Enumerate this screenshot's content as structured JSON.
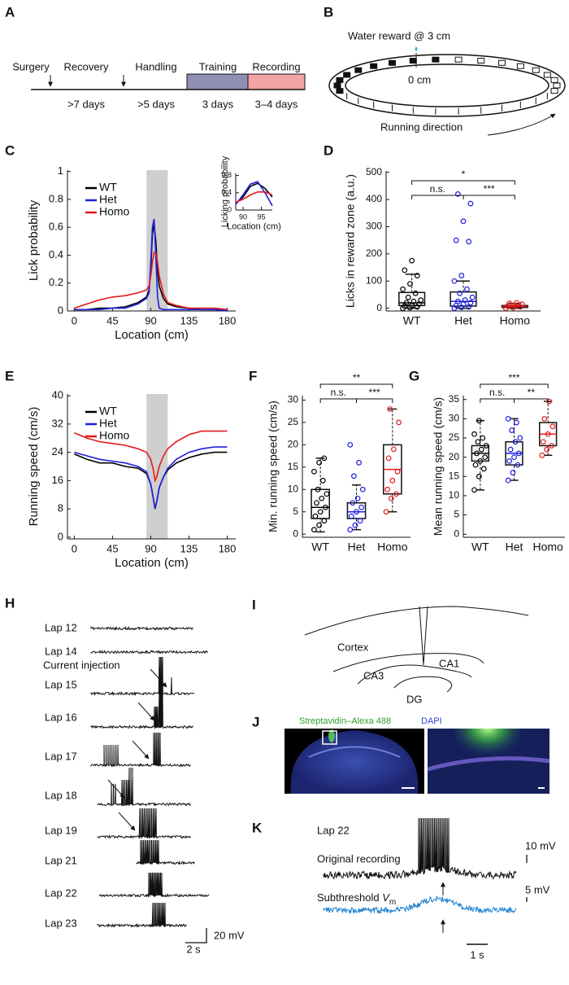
{
  "panels": [
    "A",
    "B",
    "C",
    "D",
    "E",
    "F",
    "G",
    "H",
    "I",
    "J",
    "K"
  ],
  "timeline": {
    "stages": [
      "Surgery",
      "Recovery",
      "Handling",
      "Training",
      "Recording"
    ],
    "durations": [
      ">7 days",
      ">5 days",
      "3 days",
      "3–4 days"
    ]
  },
  "track": {
    "reward": "Water reward @ 3 cm",
    "zero": "0 cm",
    "direction": "Running direction"
  },
  "chart_data": [
    {
      "type": "line",
      "ylabel": "Lick probability",
      "xlabel": "Location (cm)",
      "x": [
        0,
        15,
        30,
        45,
        60,
        75,
        80,
        85,
        88,
        90,
        92,
        94,
        96,
        98,
        100,
        105,
        110,
        120,
        135,
        150,
        165,
        180
      ],
      "series": [
        {
          "name": "WT",
          "color": "#000000",
          "values": [
            0.01,
            0.01,
            0.02,
            0.02,
            0.03,
            0.06,
            0.08,
            0.1,
            0.15,
            0.3,
            0.55,
            0.62,
            0.5,
            0.3,
            0.18,
            0.09,
            0.05,
            0.03,
            0.02,
            0.01,
            0.01,
            0.01
          ]
        },
        {
          "name": "Het",
          "color": "#1f1fe0",
          "values": [
            0.01,
            0.01,
            0.01,
            0.02,
            0.02,
            0.05,
            0.07,
            0.09,
            0.13,
            0.35,
            0.6,
            0.66,
            0.4,
            0.1,
            0.02,
            0.01,
            0.01,
            0.01,
            0.01,
            0.01,
            0.01,
            0
          ]
        },
        {
          "name": "Homo",
          "color": "#e41a1c",
          "values": [
            0.02,
            0.05,
            0.08,
            0.1,
            0.11,
            0.13,
            0.14,
            0.15,
            0.18,
            0.25,
            0.35,
            0.42,
            0.42,
            0.35,
            0.25,
            0.12,
            0.06,
            0.04,
            0.02,
            0.02,
            0.02,
            0.01
          ]
        }
      ],
      "xlim": [
        -8,
        190
      ],
      "xticks": [
        0,
        45,
        90,
        135,
        180
      ],
      "ylim": [
        0,
        1.01
      ],
      "yticks": [
        0,
        0.2,
        0.4,
        0.6,
        0.8,
        1
      ],
      "reward_zone": [
        85,
        110
      ],
      "legend": "upper left"
    },
    {
      "type": "line",
      "ylabel": "Licking probability",
      "xlabel": "Location (cm)",
      "x": [
        88,
        90,
        92,
        94,
        96,
        98
      ],
      "series": [
        {
          "color": "#000000",
          "values": [
            0.15,
            0.3,
            0.55,
            0.62,
            0.5,
            0.3
          ]
        },
        {
          "color": "#1f1fe0",
          "values": [
            0.13,
            0.35,
            0.6,
            0.66,
            0.4,
            0.1
          ]
        },
        {
          "color": "#e41a1c",
          "values": [
            0.18,
            0.25,
            0.35,
            0.42,
            0.42,
            0.35
          ]
        }
      ],
      "xlim": [
        88,
        98
      ],
      "xticks": [
        90,
        95
      ],
      "ylim": [
        0,
        0.85
      ],
      "yticks": [
        0,
        0.4,
        0.8
      ]
    },
    {
      "type": "box",
      "ylabel": "Licks in reward zone (a.u.)",
      "categories": [
        "WT",
        "Het",
        "Homo"
      ],
      "colors": [
        "#000000",
        "#1f1fe0",
        "#e41a1c"
      ],
      "boxes": [
        {
          "whislo": 0,
          "q1": 10,
          "med": 20,
          "q3": 58,
          "whishi": 125
        },
        {
          "whislo": 0,
          "q1": 8,
          "med": 25,
          "q3": 60,
          "whishi": 100
        },
        {
          "whislo": 0,
          "q1": 3,
          "med": 7,
          "q3": 10,
          "whishi": 18
        }
      ],
      "points": [
        [
          0,
          2,
          5,
          8,
          10,
          15,
          20,
          25,
          30,
          40,
          55,
          70,
          90,
          120,
          140,
          175
        ],
        [
          0,
          3,
          5,
          10,
          15,
          20,
          25,
          30,
          40,
          55,
          70,
          100,
          120,
          245,
          250,
          320,
          385,
          420
        ],
        [
          0,
          2,
          5,
          8,
          10,
          15,
          18,
          20
        ]
      ],
      "significance": [
        "*",
        "n.s.",
        "***"
      ],
      "ylim": [
        -10,
        505
      ],
      "yticks": [
        0,
        100,
        200,
        300,
        400,
        500
      ]
    },
    {
      "type": "line",
      "ylabel": "Running speed (cm/s)",
      "xlabel": "Location (cm)",
      "x": [
        0,
        15,
        30,
        45,
        60,
        75,
        85,
        90,
        93,
        95,
        97,
        100,
        105,
        110,
        120,
        135,
        150,
        165,
        180
      ],
      "series": [
        {
          "name": "WT",
          "color": "#000000",
          "values": [
            23.5,
            22,
            21,
            21,
            20,
            19.5,
            18,
            15,
            11,
            8,
            10,
            14,
            17,
            19,
            21,
            22.5,
            23.5,
            24,
            24
          ]
        },
        {
          "name": "Het",
          "color": "#1f1fe0",
          "values": [
            24,
            23,
            22,
            21.5,
            21,
            20,
            18.5,
            15,
            11,
            8,
            10,
            14,
            17,
            19.5,
            22,
            24,
            25,
            25.5,
            25.5
          ]
        },
        {
          "name": "Homo",
          "color": "#e41a1c",
          "values": [
            29.5,
            28,
            27,
            26.5,
            26,
            25,
            24,
            22,
            19,
            16,
            17,
            20,
            23,
            25,
            27,
            29,
            30,
            30,
            30
          ]
        }
      ],
      "xlim": [
        -8,
        190
      ],
      "xticks": [
        0,
        45,
        90,
        135,
        180
      ],
      "ylim": [
        -0.5,
        40.5
      ],
      "yticks": [
        0,
        8,
        16,
        24,
        32,
        40
      ],
      "reward_zone": [
        85,
        110
      ],
      "legend": "upper left"
    },
    {
      "type": "box",
      "ylabel": "Min. running speed (cm/s)",
      "categories": [
        "WT",
        "Het",
        "Homo"
      ],
      "colors": [
        "#000000",
        "#1f1fe0",
        "#e41a1c"
      ],
      "boxes": [
        {
          "whislo": 0.5,
          "q1": 3.5,
          "med": 6,
          "q3": 10,
          "whishi": 17
        },
        {
          "whislo": 1,
          "q1": 3.5,
          "med": 5,
          "q3": 7,
          "whishi": 11
        },
        {
          "whislo": 5,
          "q1": 9,
          "med": 14.5,
          "q3": 20,
          "whishi": 28
        }
      ],
      "points": [
        [
          1,
          2,
          3,
          4,
          5,
          6,
          7,
          8,
          9,
          10,
          12,
          14,
          16,
          17
        ],
        [
          1,
          2,
          3,
          4,
          5,
          6,
          7,
          8,
          10,
          13,
          16,
          20
        ],
        [
          5,
          8,
          9,
          10,
          12,
          14,
          17,
          19,
          25,
          28
        ]
      ],
      "significance": [
        "**",
        "n.s.",
        "***"
      ],
      "ylim": [
        -0.7,
        31
      ],
      "yticks": [
        0,
        5,
        10,
        15,
        20,
        25,
        30
      ]
    },
    {
      "type": "box",
      "ylabel": "Mean running speed (cm/s)",
      "categories": [
        "WT",
        "Het",
        "Homo"
      ],
      "colors": [
        "#000000",
        "#1f1fe0",
        "#e41a1c"
      ],
      "boxes": [
        {
          "whislo": 11.5,
          "q1": 19,
          "med": 21,
          "q3": 23,
          "whishi": 29.5
        },
        {
          "whislo": 14,
          "q1": 18,
          "med": 21,
          "q3": 24,
          "whishi": 30
        },
        {
          "whislo": 20.5,
          "q1": 23,
          "med": 26,
          "q3": 29,
          "whishi": 34.5
        }
      ],
      "points": [
        [
          11.5,
          15,
          17,
          18,
          19,
          20,
          21,
          22,
          23,
          24,
          25,
          26,
          29.5
        ],
        [
          14,
          16,
          18,
          19,
          20,
          21,
          22,
          24,
          25,
          27,
          29,
          30
        ],
        [
          20.5,
          22,
          23,
          24,
          26,
          28,
          30,
          34.5
        ]
      ],
      "significance": [
        "***",
        "n.s.",
        "**"
      ],
      "ylim": [
        -0.8,
        36
      ],
      "yticks": [
        0,
        5,
        10,
        15,
        20,
        25,
        30,
        35
      ]
    }
  ],
  "recordings": {
    "laps": [
      "Lap 12",
      "Lap 14",
      "Lap 15",
      "Lap 16",
      "Lap 17",
      "Lap 18",
      "Lap 19",
      "Lap 21",
      "Lap 22",
      "Lap 23"
    ],
    "annotation": "Current injection",
    "scale_time": "2 s",
    "scale_voltage": "20 mV"
  },
  "anatomy": {
    "regions": [
      "Cortex",
      "CA3",
      "CA1",
      "DG"
    ]
  },
  "histology": {
    "stain_1": "Streptavidin–Alexa 488",
    "stain_2": "DAPI"
  },
  "example": {
    "lap": "Lap 22",
    "trace_1": "Original recording",
    "scale_1": "10 mV",
    "trace_2_prefix": "Subthreshold ",
    "trace_2_symbol": "V",
    "trace_2_subscript": "m",
    "scale_2": "5 mV",
    "scale_time": "1 s"
  }
}
